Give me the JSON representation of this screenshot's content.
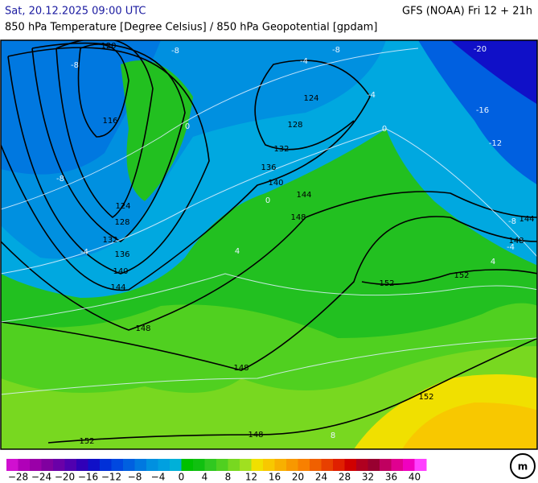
{
  "header": {
    "left": "Sat, 20.12.2025 09:00 UTC",
    "right": "GFS (NOAA) Fri 12 + 21h",
    "subtitle": "850 hPa Temperature [Degree Celsius] / 850 hPa Geopotential [gpdam]"
  },
  "map": {
    "geopotential_labels": [
      "120",
      "116",
      "124",
      "128",
      "132",
      "136",
      "140",
      "144",
      "148",
      "148",
      "152",
      "148",
      "124",
      "128",
      "132",
      "136",
      "140",
      "144",
      "148",
      "152",
      "152",
      "152",
      "148",
      "144"
    ],
    "temperature_labels": [
      "-8",
      "-8",
      "-8",
      "-4",
      "-4",
      "-20",
      "-16",
      "-12",
      "-8",
      "-8",
      "-4",
      "-4",
      "0",
      "0",
      "0",
      "4",
      "4",
      "8"
    ]
  },
  "colorbar": {
    "range": [
      -30,
      42
    ],
    "colors": [
      "#d010d0",
      "#b000b8",
      "#9a00a8",
      "#8000a0",
      "#6a00a8",
      "#5000b0",
      "#3000b8",
      "#1010c8",
      "#0030d8",
      "#0048e0",
      "#0060e0",
      "#0078e0",
      "#0090e0",
      "#00a0e0",
      "#00b0d8",
      "#00c000",
      "#10c010",
      "#30c820",
      "#50d020",
      "#78d820",
      "#a0e020",
      "#f0e000",
      "#f8c800",
      "#f8b000",
      "#f89800",
      "#f88000",
      "#f06000",
      "#e84000",
      "#e02000",
      "#d00000",
      "#b00020",
      "#980030",
      "#c00060",
      "#e00090",
      "#f000c0",
      "#ff40ff"
    ],
    "ticks": [
      {
        "value": -28,
        "label": "−28"
      },
      {
        "value": -24,
        "label": "−24"
      },
      {
        "value": -20,
        "label": "−20"
      },
      {
        "value": -16,
        "label": "−16"
      },
      {
        "value": -12,
        "label": "−12"
      },
      {
        "value": -8,
        "label": "−8"
      },
      {
        "value": -4,
        "label": "−4"
      },
      0,
      4,
      8,
      12,
      16,
      20,
      24,
      28,
      32,
      36,
      40
    ]
  }
}
